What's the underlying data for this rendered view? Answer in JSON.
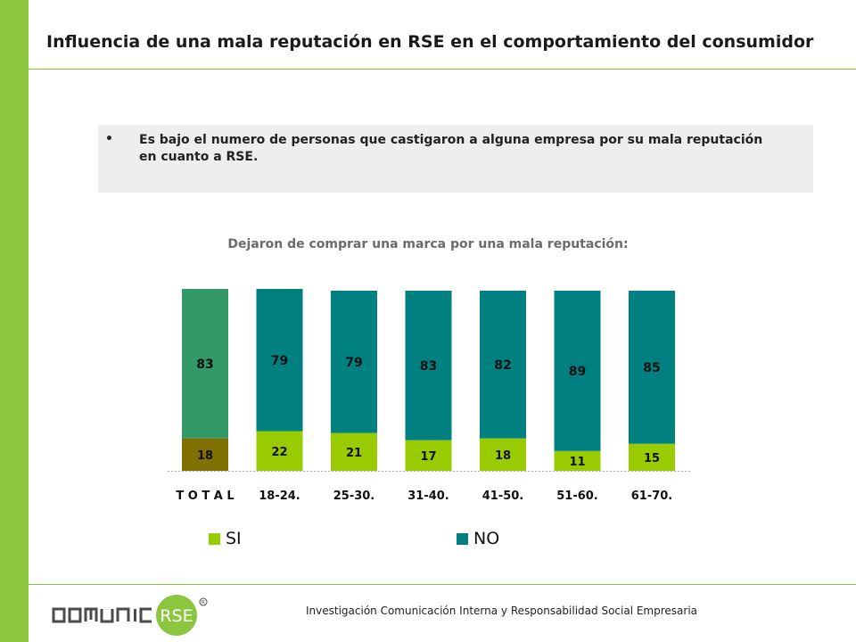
{
  "page": {
    "title": "Influencia de una mala reputación en RSE en el comportamiento del consumidor",
    "note_bullet": "•",
    "note": "Es bajo el numero de personas que castigaron a alguna empresa por su mala reputación en cuanto a RSE.",
    "footer": "Investigación Comunicación Interna y Responsabilidad Social Empresaria",
    "logo_text": "COMUNICA RSE",
    "accent_color": "#8cc63f"
  },
  "chart_data": {
    "type": "bar",
    "stacked": true,
    "title": "Dejaron de comprar una marca por una mala reputación:",
    "categories": [
      "T O T A L",
      "18-24.",
      "25-30.",
      "31-40.",
      "41-50.",
      "51-60.",
      "61-70."
    ],
    "series": [
      {
        "name": "SI",
        "values": [
          18,
          22,
          21,
          17,
          18,
          11,
          15
        ],
        "color": "#99cc00"
      },
      {
        "name": "NO",
        "values": [
          83,
          79,
          79,
          83,
          82,
          89,
          85
        ],
        "color": "#008080"
      }
    ],
    "total_colors": {
      "SI": "#807000",
      "NO": "#339966"
    },
    "ylim": [
      0,
      101
    ],
    "legend_position": "bottom",
    "grid": false
  }
}
